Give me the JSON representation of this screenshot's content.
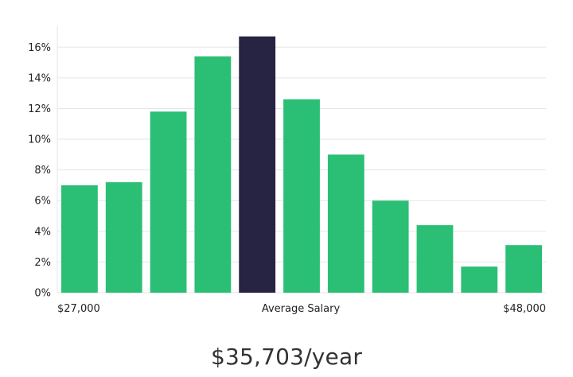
{
  "chart_data": {
    "type": "bar",
    "values": [
      7.0,
      7.2,
      11.8,
      15.4,
      16.7,
      12.6,
      9.0,
      6.0,
      4.4,
      1.7,
      3.1
    ],
    "highlight_index": 4,
    "ylim": [
      0,
      17
    ],
    "yticks": [
      "0%",
      "2%",
      "4%",
      "6%",
      "8%",
      "10%",
      "12%",
      "14%",
      "16%"
    ],
    "ytick_values": [
      0,
      2,
      4,
      6,
      8,
      10,
      12,
      14,
      16
    ],
    "x_labels": {
      "left": "$27,000",
      "center": "Average Salary",
      "right": "$48,000"
    },
    "grid": true,
    "colors": {
      "bar": "#2bbf76",
      "highlight": "#262343",
      "grid": "#e6e6e6"
    }
  },
  "summary": {
    "average_salary": "$35,703/year"
  }
}
